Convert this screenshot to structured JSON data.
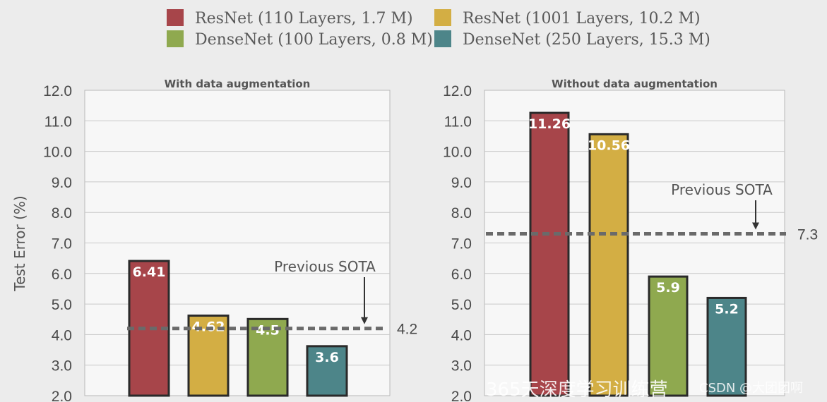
{
  "colors": {
    "resnet110": "#a7454a",
    "resnet1001": "#d3ae44",
    "densenet100": "#8fa94f",
    "densenet250": "#4d8589",
    "sota_line": "#6a6a6a",
    "grid": "#c8c8c8"
  },
  "legend": [
    {
      "key": "resnet110",
      "label": "ResNet (110 Layers, 1.7 M)"
    },
    {
      "key": "resnet1001",
      "label": "ResNet (1001 Layers, 10.2 M)"
    },
    {
      "key": "densenet100",
      "label": "DenseNet (100 Layers, 0.8 M)"
    },
    {
      "key": "densenet250",
      "label": "DenseNet (250 Layers, 15.3 M)"
    }
  ],
  "chart_data": [
    {
      "type": "bar",
      "title": "With data augmentation",
      "ylabel": "Test Error (%)",
      "ylim": [
        2.0,
        12.0
      ],
      "yticks": [
        "2.0",
        "3.0",
        "4.0",
        "5.0",
        "6.0",
        "7.0",
        "8.0",
        "9.0",
        "10.0",
        "11.0",
        "12.0"
      ],
      "series": [
        {
          "name": "ResNet (110 Layers, 1.7 M)",
          "key": "resnet110",
          "value": 6.41,
          "label": "6.41"
        },
        {
          "name": "ResNet (1001 Layers, 10.2 M)",
          "key": "resnet1001",
          "value": 4.62,
          "label": "4.62"
        },
        {
          "name": "DenseNet (100 Layers, 0.8 M)",
          "key": "densenet100",
          "value": 4.51,
          "label": "4.5"
        },
        {
          "name": "DenseNet (250 Layers, 15.3 M)",
          "key": "densenet250",
          "value": 3.62,
          "label": "3.6"
        }
      ],
      "sota": {
        "value": 4.2,
        "label": "4.2",
        "annotation": "Previous SOTA"
      }
    },
    {
      "type": "bar",
      "title": "Without data augmentation",
      "ylabel": "",
      "ylim": [
        2.0,
        12.0
      ],
      "yticks": [
        "2.0",
        "3.0",
        "4.0",
        "5.0",
        "6.0",
        "7.0",
        "8.0",
        "9.0",
        "10.0",
        "11.0",
        "12.0"
      ],
      "series": [
        {
          "name": "ResNet (110 Layers, 1.7 M)",
          "key": "resnet110",
          "value": 11.26,
          "label": "11.26"
        },
        {
          "name": "ResNet (1001 Layers, 10.2 M)",
          "key": "resnet1001",
          "value": 10.56,
          "label": "10.56"
        },
        {
          "name": "DenseNet (100 Layers, 0.8 M)",
          "key": "densenet100",
          "value": 5.9,
          "label": "5.9"
        },
        {
          "name": "DenseNet (250 Layers, 15.3 M)",
          "key": "densenet250",
          "value": 5.2,
          "label": "5.2"
        }
      ],
      "sota": {
        "value": 7.3,
        "label": "7.3",
        "annotation": "Previous SOTA"
      }
    }
  ],
  "watermark": {
    "text": "365天深度学习训练营",
    "credit": "CSDN @大团团啊"
  }
}
